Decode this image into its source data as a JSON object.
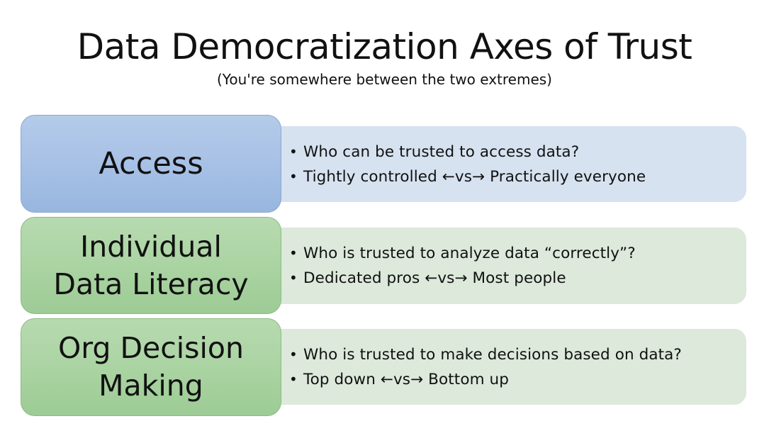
{
  "title": "Data Democratization Axes of Trust",
  "subtitle": "(You're somewhere between the two extremes)",
  "rows": [
    {
      "category": "Access",
      "fill_color": "#a6c0e5",
      "panel_color": "#d6e2f0",
      "bullets": [
        "Who can be trusted to access data?",
        "Tightly controlled ←vs→ Practically everyone"
      ]
    },
    {
      "category": "Individual\nData Literacy",
      "fill_color": "#a9d3a1",
      "panel_color": "#dce9db",
      "bullets": [
        "Who is trusted to analyze data “correctly”?",
        "Dedicated pros ←vs→ Most people"
      ]
    },
    {
      "category": "Org Decision\nMaking",
      "fill_color": "#a9d3a1",
      "panel_color": "#dce9db",
      "bullets": [
        "Who is trusted to make decisions based on data?",
        "Top down ←vs→ Bottom up"
      ]
    }
  ]
}
